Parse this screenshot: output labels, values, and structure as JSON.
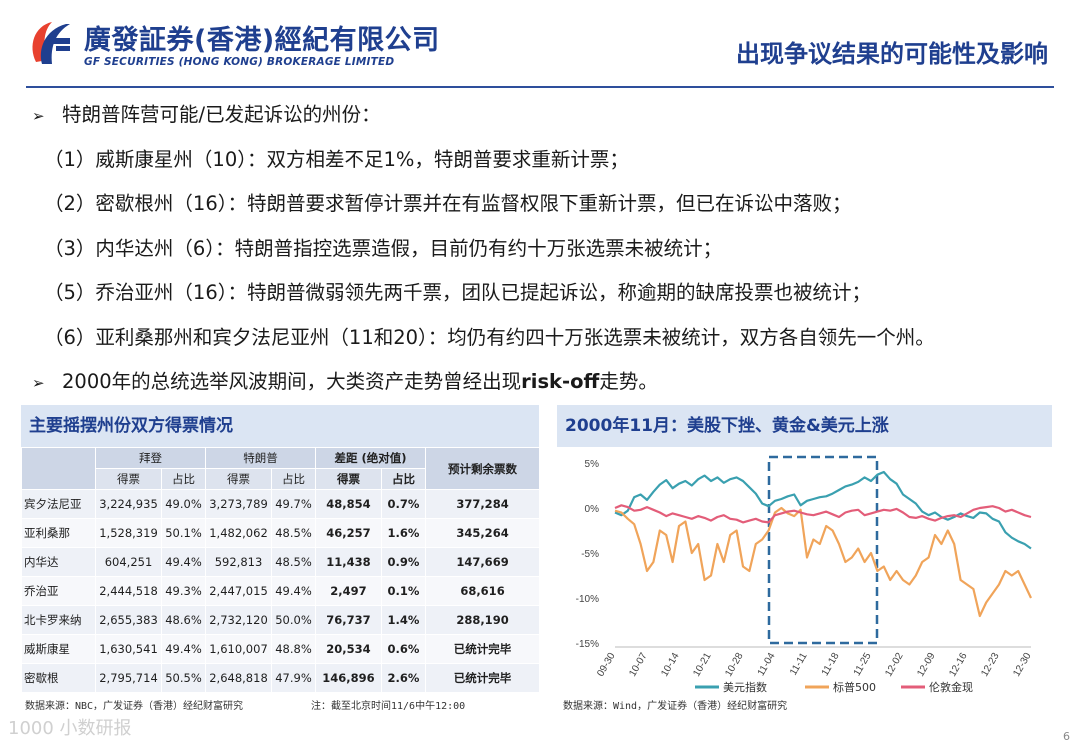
{
  "header": {
    "logo_cn": "廣發証券(香港)經紀有限公司",
    "logo_en": "GF SECURITIES (HONG KONG) BROKERAGE LIMITED",
    "title": "出现争议结果的可能性及影响"
  },
  "bullets": [
    {
      "kind": "main",
      "parts": [
        "特朗普阵营可能/已发起诉讼的州份："
      ]
    },
    {
      "kind": "sub",
      "parts": [
        "（1）威斯康星州（10）：双方相差不足1%，特朗普要求重新计票；"
      ]
    },
    {
      "kind": "sub",
      "parts": [
        "（2）密歇根州（16）：特朗普要求暂停计票并在有监督权限下重新计票，但已在诉讼中落败；"
      ]
    },
    {
      "kind": "sub",
      "parts": [
        "（3）内华达州（6）：特朗普指控选票造假，目前仍有约十万张选票未被统计；"
      ]
    },
    {
      "kind": "sub",
      "parts": [
        "（5）乔治亚州（16）：特朗普微弱领先两千票，团队已提起诉讼，称逾期的缺席投票也被统计；"
      ]
    },
    {
      "kind": "sub",
      "parts": [
        "（6）亚利桑那州和宾夕法尼亚州（11和20）：均仍有约四十万张选票未被统计，双方各自领先一个州。"
      ]
    },
    {
      "kind": "main",
      "parts": [
        "2000年的总统选举风波期间，大类资产走势曾经出现",
        "risk-off",
        "走势。"
      ]
    }
  ],
  "table": {
    "title": "主要摇摆州份双方得票情况",
    "groups": {
      "biden": "拜登",
      "trump": "特朗普",
      "margin": "差距 (绝对值)",
      "remaining": "预计剩余票数"
    },
    "subheaders": {
      "votes": "得票",
      "share": "占比"
    },
    "rows": [
      {
        "state": "宾夕法尼亚",
        "b_votes": "3,224,935",
        "b_pct": "49.0%",
        "t_votes": "3,273,789",
        "t_pct": "49.7%",
        "m_votes": "48,854",
        "m_pct": "0.7%",
        "remaining": "377,284"
      },
      {
        "state": "亚利桑那",
        "b_votes": "1,528,319",
        "b_pct": "50.1%",
        "t_votes": "1,482,062",
        "t_pct": "48.5%",
        "m_votes": "46,257",
        "m_pct": "1.6%",
        "remaining": "345,264"
      },
      {
        "state": "内华达",
        "b_votes": "604,251",
        "b_pct": "49.4%",
        "t_votes": "592,813",
        "t_pct": "48.5%",
        "m_votes": "11,438",
        "m_pct": "0.9%",
        "remaining": "147,669"
      },
      {
        "state": "乔治亚",
        "b_votes": "2,444,518",
        "b_pct": "49.3%",
        "t_votes": "2,447,015",
        "t_pct": "49.4%",
        "m_votes": "2,497",
        "m_pct": "0.1%",
        "remaining": "68,616"
      },
      {
        "state": "北卡罗来纳",
        "b_votes": "2,655,383",
        "b_pct": "48.6%",
        "t_votes": "2,732,120",
        "t_pct": "50.0%",
        "m_votes": "76,737",
        "m_pct": "1.4%",
        "remaining": "288,190"
      },
      {
        "state": "威斯康星",
        "b_votes": "1,630,541",
        "b_pct": "49.4%",
        "t_votes": "1,610,007",
        "t_pct": "48.8%",
        "m_votes": "20,534",
        "m_pct": "0.6%",
        "remaining": "已统计完毕"
      },
      {
        "state": "密歇根",
        "b_votes": "2,795,714",
        "b_pct": "50.5%",
        "t_votes": "2,648,818",
        "t_pct": "47.9%",
        "m_votes": "146,896",
        "m_pct": "2.6%",
        "remaining": "已统计完毕"
      }
    ],
    "source": "数据来源：NBC，广发证券（香港）经纪财富研究",
    "note": "注：截至北京时间11/6中午12:00"
  },
  "chart": {
    "title": "2000年11月：美股下挫、黄金&美元上涨",
    "source": "数据来源：Wind，广发证券（香港）经纪财富研究"
  },
  "chart_data": {
    "type": "line",
    "title": "2000年11月：美股下挫、黄金&美元上涨",
    "x_ticks": [
      "09-30",
      "10-07",
      "10-14",
      "10-21",
      "10-28",
      "11-04",
      "11-11",
      "11-18",
      "11-25",
      "12-02",
      "12-09",
      "12-16",
      "12-23",
      "12-30"
    ],
    "y_ticks": [
      "5%",
      "0%",
      "-5%",
      "-10%",
      "-15%"
    ],
    "ylim": [
      -15,
      5
    ],
    "x_index_range": [
      0,
      65
    ],
    "highlight_window": {
      "from": "11-04",
      "to": "11-25"
    },
    "legend_position": "bottom",
    "series": [
      {
        "name": "美元指数",
        "color": "#3aa0b0",
        "values": [
          -0.5,
          -0.8,
          -0.3,
          1.2,
          1.5,
          0.9,
          1.8,
          2.6,
          3.1,
          2.2,
          2.7,
          3.0,
          2.5,
          3.2,
          3.6,
          3.0,
          3.4,
          2.8,
          3.2,
          3.4,
          3.0,
          2.3,
          1.6,
          0.5,
          0.2,
          0.8,
          1.0,
          1.3,
          1.5,
          0.3,
          0.8,
          1.0,
          1.2,
          1.3,
          1.6,
          2.0,
          2.4,
          2.6,
          2.9,
          3.4,
          3.0,
          3.7,
          4.0,
          3.2,
          2.7,
          1.5,
          1.0,
          0.5,
          -0.4,
          -0.8,
          -0.5,
          -1.0,
          -1.3,
          -1.0,
          -0.6,
          -0.9,
          -1.1,
          -0.5,
          -0.6,
          -1.2,
          -1.5,
          -2.7,
          -3.3,
          -3.7,
          -4.0,
          -4.5
        ]
      },
      {
        "name": "标普500",
        "color": "#f0a45a",
        "values": [
          -0.3,
          -0.5,
          -1.2,
          -1.8,
          -4.0,
          -7.0,
          -6.0,
          -2.5,
          -3.0,
          -6.0,
          -2.0,
          -1.5,
          -5.0,
          -4.0,
          -8.0,
          -7.5,
          -4.0,
          -6.0,
          -3.0,
          -2.5,
          -6.5,
          -7.0,
          -4.0,
          -3.5,
          -2.5,
          -0.5,
          0.0,
          -0.6,
          -0.9,
          -0.2,
          -5.5,
          -3.5,
          -4.0,
          -2.0,
          -2.5,
          -4.0,
          -6.0,
          -5.5,
          -4.5,
          -6.0,
          -5.0,
          -7.0,
          -6.5,
          -8.0,
          -7.0,
          -8.0,
          -8.5,
          -7.5,
          -6.0,
          -5.5,
          -3.0,
          -4.0,
          -2.5,
          -4.0,
          -8.0,
          -8.5,
          -9.0,
          -12.0,
          -10.5,
          -9.5,
          -8.5,
          -7.0,
          -7.5,
          -7.0,
          -8.5,
          -10.0
        ]
      },
      {
        "name": "伦敦金现",
        "color": "#e35d79",
        "values": [
          0.0,
          0.3,
          0.1,
          -0.3,
          -0.2,
          0.1,
          -0.2,
          -0.5,
          -0.9,
          -0.6,
          -0.8,
          -1.0,
          -1.2,
          -0.9,
          -1.1,
          -1.4,
          -1.0,
          -0.8,
          -1.2,
          -1.3,
          -1.6,
          -1.4,
          -1.2,
          -1.5,
          -1.6,
          -0.8,
          -0.6,
          -0.4,
          -0.3,
          -0.5,
          -0.7,
          -0.8,
          -0.6,
          -0.4,
          -0.7,
          -1.0,
          -0.5,
          -0.3,
          -0.2,
          -0.8,
          -0.6,
          -0.4,
          -0.2,
          -0.3,
          -0.1,
          -0.5,
          -1.0,
          -1.1,
          -0.9,
          -1.2,
          -1.4,
          -1.1,
          -0.9,
          -0.8,
          -1.0,
          -0.6,
          -0.2,
          0.0,
          0.1,
          0.2,
          0.0,
          -0.4,
          -0.2,
          -0.5,
          -0.8,
          -1.0
        ]
      }
    ]
  },
  "watermark": "1000 小数研报",
  "page_number": "6"
}
